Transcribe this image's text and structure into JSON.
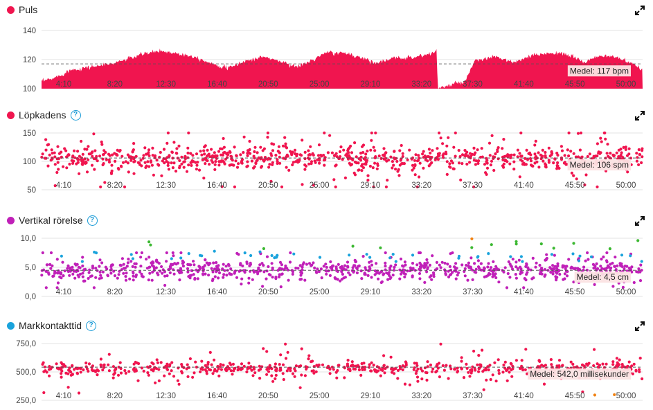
{
  "chart_data": [
    {
      "id": "puls",
      "type": "area",
      "title": "Puls",
      "color": "#f0154f",
      "has_help": false,
      "yticks": [
        "140",
        "120",
        "100"
      ],
      "ylim": [
        100,
        140
      ],
      "xticks": [
        "4:10",
        "8:20",
        "12:30",
        "16:40",
        "20:50",
        "25:00",
        "29:10",
        "33:20",
        "37:30",
        "41:40",
        "45:50",
        "50:00"
      ],
      "xlim": [
        0,
        3050
      ],
      "average": 117,
      "average_label": "Medel: 117 bpm",
      "profile": [
        [
          0,
          105
        ],
        [
          60,
          107
        ],
        [
          150,
          113
        ],
        [
          250,
          115
        ],
        [
          350,
          117
        ],
        [
          450,
          121
        ],
        [
          520,
          124
        ],
        [
          600,
          126
        ],
        [
          700,
          124
        ],
        [
          780,
          122
        ],
        [
          850,
          118
        ],
        [
          950,
          114
        ],
        [
          1030,
          119
        ],
        [
          1130,
          122
        ],
        [
          1230,
          118
        ],
        [
          1300,
          115
        ],
        [
          1380,
          120
        ],
        [
          1450,
          125
        ],
        [
          1560,
          124
        ],
        [
          1650,
          120
        ],
        [
          1700,
          118
        ],
        [
          1800,
          121
        ],
        [
          1900,
          122
        ],
        [
          1980,
          124
        ],
        [
          2005,
          127
        ],
        [
          2010,
          100
        ],
        [
          2090,
          103
        ],
        [
          2150,
          105
        ],
        [
          2200,
          119
        ],
        [
          2300,
          122
        ],
        [
          2400,
          118
        ],
        [
          2500,
          123
        ],
        [
          2600,
          125
        ],
        [
          2700,
          122
        ],
        [
          2760,
          118
        ],
        [
          2800,
          121
        ],
        [
          2880,
          123
        ],
        [
          2950,
          120
        ],
        [
          3050,
          113
        ]
      ],
      "series": []
    },
    {
      "id": "kadens",
      "type": "scatter",
      "title": "Löpkadens",
      "color": "#f0154f",
      "has_help": true,
      "yticks": [
        "150",
        "100",
        "50"
      ],
      "ylim": [
        50,
        150
      ],
      "xticks": [
        "4:10",
        "8:20",
        "12:30",
        "16:40",
        "20:50",
        "25:00",
        "29:10",
        "33:20",
        "37:30",
        "41:40",
        "45:50",
        "50:00"
      ],
      "xlim": [
        0,
        3050
      ],
      "average": 106,
      "average_label": "Medel: 106 spm",
      "series": [
        {
          "points": 900,
          "center": 106,
          "spread": 10,
          "outlier_spread": 28,
          "min": 55,
          "max": 150,
          "color": "#f0154f"
        }
      ]
    },
    {
      "id": "vertikal",
      "type": "scatter",
      "title": "Vertikal rörelse",
      "color": "#c020b8",
      "has_help": true,
      "yticks": [
        "10,0",
        "5,0",
        "0,0"
      ],
      "ylim": [
        0,
        10
      ],
      "xticks": [
        "4:10",
        "8:20",
        "12:30",
        "16:40",
        "20:50",
        "25:00",
        "29:10",
        "33:20",
        "37:30",
        "41:40",
        "45:50",
        "50:00"
      ],
      "xlim": [
        0,
        3050
      ],
      "average": 4.5,
      "average_label": "Medel: 4,5 cm",
      "series": [
        {
          "points": 820,
          "center": 4.6,
          "spread": 0.8,
          "outlier_spread": 1.6,
          "min": 1.5,
          "max": 7.5,
          "color": "#c020b8"
        },
        {
          "points": 45,
          "center": 6.9,
          "spread": 0.5,
          "outlier_spread": 0.6,
          "min": 6.0,
          "max": 8.0,
          "color": "#1aa3dc"
        },
        {
          "points": 14,
          "center": 8.8,
          "spread": 0.4,
          "outlier_spread": 0.5,
          "min": 8.0,
          "max": 9.6,
          "color": "#3cb832"
        },
        {
          "points": 1,
          "center": 9.8,
          "spread": 0.1,
          "outlier_spread": 0.1,
          "min": 9.7,
          "max": 9.9,
          "color": "#f08010"
        }
      ]
    },
    {
      "id": "markkontakt",
      "type": "scatter",
      "title": "Markkontakttid",
      "color": "#1aa3dc",
      "has_help": true,
      "yticks": [
        "750,0",
        "500,0",
        "250,0"
      ],
      "ylim": [
        250,
        750
      ],
      "xticks": [
        "4:10",
        "8:20",
        "12:30",
        "16:40",
        "20:50",
        "25:00",
        "29:10",
        "33:20",
        "37:30",
        "41:40",
        "45:50",
        "50:00"
      ],
      "xlim": [
        0,
        3050
      ],
      "average": 542,
      "average_label": "Medel: 542,0 millisekunder",
      "series": [
        {
          "points": 600,
          "center": 532,
          "spread": 30,
          "outlier_spread": 90,
          "min": 300,
          "max": 745,
          "color": "#f0154f"
        },
        {
          "points": 2,
          "center": 300,
          "spread": 5,
          "outlier_spread": 5,
          "min": 295,
          "max": 305,
          "color": "#f08010"
        }
      ]
    }
  ]
}
